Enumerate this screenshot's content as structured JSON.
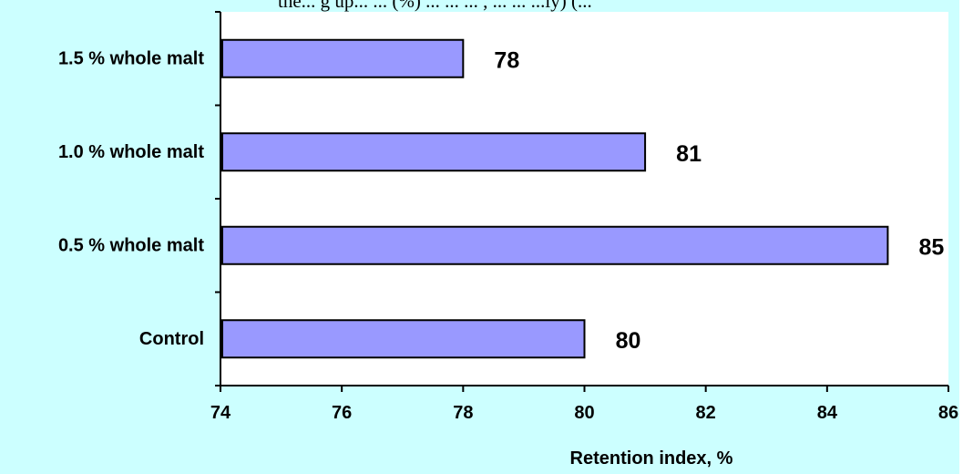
{
  "figure": {
    "top_text": "the... g up... ... (%) ... ... ... , ... ... ...ly) (..."
  },
  "chart_data": {
    "type": "bar",
    "orientation": "horizontal",
    "categories": [
      "1.5 % whole malt",
      "1.0 % whole malt",
      "0.5 % whole malt",
      "Control"
    ],
    "values": [
      78,
      81,
      85,
      80
    ],
    "data_labels": [
      "78",
      "81",
      "85",
      "80"
    ],
    "xlabel": "Retention index, %",
    "ylabel": "",
    "xlim": [
      74,
      86
    ],
    "xticks": [
      74,
      76,
      78,
      80,
      82,
      84,
      86
    ],
    "xtick_labels": [
      "74",
      "76",
      "78",
      "80",
      "82",
      "84",
      "86"
    ],
    "grid": false,
    "legend": "none",
    "colors": {
      "bar_fill": "#9999ff",
      "bar_stroke": "#000000",
      "panel_background": "#ccffff",
      "plot_background": "#ffffff",
      "text": "#000000"
    }
  }
}
